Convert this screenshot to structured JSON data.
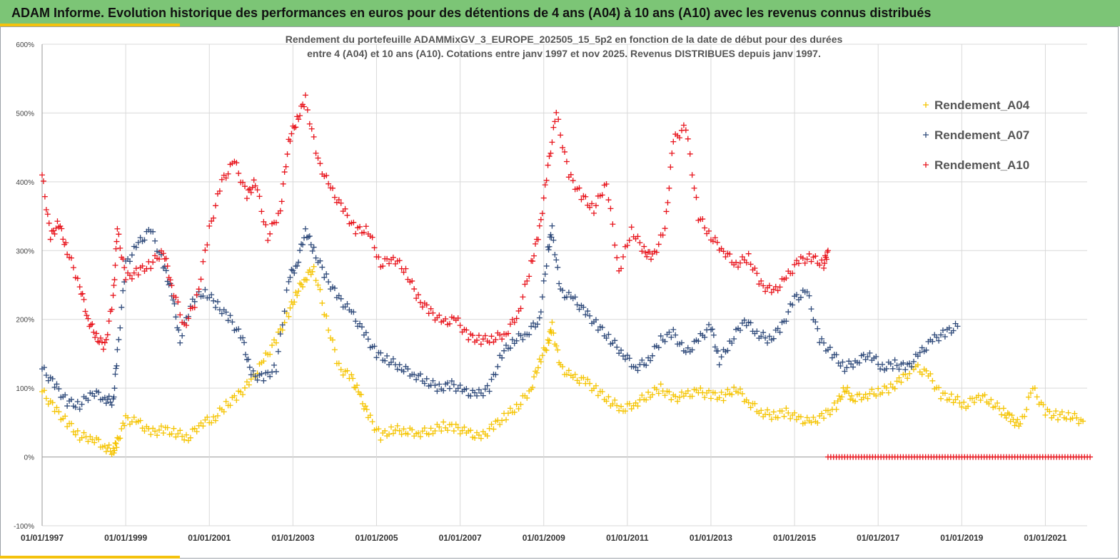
{
  "banner": {
    "title": "ADAM Informe. Evolution historique des performances en euros pour des détentions de 4 ans (A04) à 10 ans (A10) avec les revenus connus distribués"
  },
  "colors": {
    "banner": "#7cc576",
    "accent": "#f4c20d",
    "A04": "#f5c400",
    "A07": "#2f4a7a",
    "A10": "#e8141c"
  },
  "chart_data": {
    "type": "scatter",
    "title_lines": [
      "Rendement du portefeuille ADAMMixGV_3_EUROPE_202505_15_5p2  en fonction de la date de début pour des durées",
      "entre 4 (A04) et 10 ans (A10). Cotations entre janv 1997 et nov 2025. Revenus DISTRIBUES depuis janv 1997."
    ],
    "xlabel": "",
    "ylabel": "",
    "ylim": [
      -100,
      600
    ],
    "xlim": [
      "1997-01-01",
      "2022-01-01"
    ],
    "yticks": [
      "-100%",
      "0%",
      "100%",
      "200%",
      "300%",
      "400%",
      "500%",
      "600%"
    ],
    "yticks_values": [
      -100,
      0,
      100,
      200,
      300,
      400,
      500,
      600
    ],
    "xticks": [
      "01/01/1997",
      "01/01/1999",
      "01/01/2001",
      "01/01/2003",
      "01/01/2005",
      "01/01/2007",
      "01/01/2009",
      "01/01/2011",
      "01/01/2013",
      "01/01/2015",
      "01/01/2017",
      "01/01/2019",
      "01/01/2021"
    ],
    "xticks_values": [
      1997,
      1999,
      2001,
      2003,
      2005,
      2007,
      2009,
      2011,
      2013,
      2015,
      2017,
      2019,
      2021
    ],
    "grid": true,
    "legend_position": "top-right",
    "marker": "+",
    "series": [
      {
        "name": "Rendement_A04",
        "key": "A04",
        "x": [
          1997.0,
          1997.3,
          1997.6,
          1997.9,
          1998.2,
          1998.5,
          1998.7,
          1998.8,
          1999.0,
          1999.3,
          1999.6,
          1999.9,
          2000.2,
          2000.5,
          2000.8,
          2001.1,
          2001.4,
          2001.7,
          2002.0,
          2002.3,
          2002.6,
          2002.9,
          2003.1,
          2003.3,
          2003.5,
          2003.8,
          2004.1,
          2004.4,
          2004.6,
          2004.8,
          2005.1,
          2005.4,
          2005.7,
          2006.0,
          2006.3,
          2006.6,
          2006.9,
          2007.2,
          2007.5,
          2007.8,
          2008.1,
          2008.4,
          2008.7,
          2008.9,
          2009.1,
          2009.2,
          2009.4,
          2009.7,
          2010.0,
          2010.3,
          2010.6,
          2010.9,
          2011.2,
          2011.5,
          2011.8,
          2012.1,
          2012.4,
          2012.7,
          2013.0,
          2013.3,
          2013.6,
          2013.9,
          2014.2,
          2014.5,
          2014.8,
          2015.1,
          2015.4,
          2015.7,
          2016.0,
          2016.2,
          2016.4,
          2016.7,
          2017.0,
          2017.3,
          2017.6,
          2017.9,
          2018.2,
          2018.5,
          2018.8,
          2019.1,
          2019.4,
          2019.7,
          2020.0,
          2020.2,
          2020.4,
          2020.7,
          2021.0,
          2021.3,
          2021.6,
          2021.9
        ],
        "y": [
          95,
          70,
          50,
          30,
          28,
          15,
          8,
          22,
          55,
          50,
          35,
          40,
          35,
          28,
          50,
          55,
          75,
          90,
          110,
          140,
          170,
          210,
          240,
          260,
          275,
          200,
          130,
          115,
          90,
          60,
          30,
          40,
          38,
          35,
          38,
          45,
          42,
          35,
          28,
          45,
          60,
          75,
          100,
          140,
          165,
          190,
          130,
          115,
          110,
          95,
          80,
          70,
          78,
          90,
          100,
          85,
          90,
          95,
          90,
          88,
          100,
          80,
          65,
          60,
          65,
          55,
          50,
          60,
          75,
          100,
          85,
          90,
          95,
          100,
          115,
          130,
          120,
          90,
          85,
          75,
          90,
          80,
          65,
          55,
          45,
          100,
          65,
          60,
          60,
          52
        ]
      },
      {
        "name": "Rendement_A07",
        "key": "A07",
        "x": [
          1997.0,
          1997.3,
          1997.6,
          1997.9,
          1998.2,
          1998.5,
          1998.7,
          1998.8,
          1999.0,
          1999.3,
          1999.6,
          1999.9,
          2000.1,
          2000.3,
          2000.6,
          2000.9,
          2001.2,
          2001.5,
          2001.8,
          2002.0,
          2002.3,
          2002.6,
          2002.9,
          2003.1,
          2003.3,
          2003.5,
          2003.8,
          2004.1,
          2004.4,
          2004.7,
          2005.0,
          2005.3,
          2005.6,
          2005.9,
          2006.2,
          2006.5,
          2006.8,
          2007.1,
          2007.4,
          2007.7,
          2008.0,
          2008.3,
          2008.6,
          2008.9,
          2009.1,
          2009.2,
          2009.4,
          2009.7,
          2010.0,
          2010.3,
          2010.6,
          2010.9,
          2011.2,
          2011.5,
          2011.8,
          2012.1,
          2012.4,
          2012.7,
          2013.0,
          2013.2,
          2013.5,
          2013.8,
          2014.1,
          2014.4,
          2014.7,
          2015.0,
          2015.3,
          2015.6,
          2015.9,
          2016.2,
          2016.5,
          2016.8,
          2017.1,
          2017.4,
          2017.7,
          2018.0,
          2018.3,
          2018.6,
          2018.9
        ],
        "y": [
          128,
          105,
          80,
          75,
          95,
          85,
          80,
          150,
          280,
          310,
          330,
          280,
          240,
          170,
          230,
          240,
          220,
          200,
          170,
          120,
          115,
          130,
          260,
          280,
          330,
          300,
          260,
          230,
          210,
          180,
          150,
          140,
          130,
          120,
          110,
          100,
          105,
          95,
          90,
          100,
          150,
          170,
          180,
          200,
          300,
          330,
          240,
          230,
          210,
          190,
          170,
          150,
          130,
          140,
          170,
          180,
          150,
          170,
          190,
          140,
          170,
          200,
          180,
          170,
          190,
          230,
          240,
          170,
          150,
          130,
          140,
          150,
          130,
          135,
          130,
          150,
          170,
          180,
          190
        ]
      },
      {
        "name": "Rendement_A10",
        "key": "A10",
        "x": [
          1997.0,
          1997.2,
          1997.4,
          1997.6,
          1997.9,
          1998.1,
          1998.3,
          1998.5,
          1998.7,
          1998.8,
          1999.0,
          1999.3,
          1999.6,
          1999.9,
          2000.1,
          2000.4,
          2000.7,
          2001.0,
          2001.3,
          2001.6,
          2001.9,
          2002.1,
          2002.4,
          2002.7,
          2002.9,
          2003.1,
          2003.3,
          2003.6,
          2003.9,
          2004.2,
          2004.5,
          2004.8,
          2005.1,
          2005.4,
          2005.7,
          2006.0,
          2006.3,
          2006.6,
          2006.9,
          2007.2,
          2007.5,
          2007.8,
          2008.1,
          2008.4,
          2008.7,
          2008.9,
          2009.1,
          2009.3,
          2009.6,
          2009.9,
          2010.2,
          2010.5,
          2010.8,
          2011.1,
          2011.4,
          2011.6,
          2011.9,
          2012.1,
          2012.4,
          2012.7,
          2013.0,
          2013.3,
          2013.6,
          2013.9,
          2014.2,
          2014.5,
          2014.8,
          2015.1,
          2015.4,
          2015.7,
          2015.8
        ],
        "y": [
          410,
          320,
          340,
          300,
          250,
          200,
          175,
          160,
          230,
          330,
          260,
          270,
          280,
          300,
          250,
          190,
          230,
          330,
          400,
          430,
          380,
          400,
          320,
          360,
          460,
          490,
          520,
          430,
          390,
          360,
          330,
          330,
          280,
          290,
          270,
          230,
          210,
          195,
          200,
          175,
          170,
          172,
          180,
          210,
          280,
          330,
          420,
          500,
          410,
          380,
          360,
          400,
          270,
          330,
          300,
          290,
          330,
          460,
          480,
          350,
          320,
          300,
          280,
          290,
          250,
          240,
          260,
          285,
          290,
          280,
          300
        ]
      },
      {
        "name": "",
        "key": "A10",
        "zero_run": true,
        "x_start": 2015.8,
        "x_end": 2022.1,
        "step": 0.0667,
        "y": 0
      }
    ]
  }
}
